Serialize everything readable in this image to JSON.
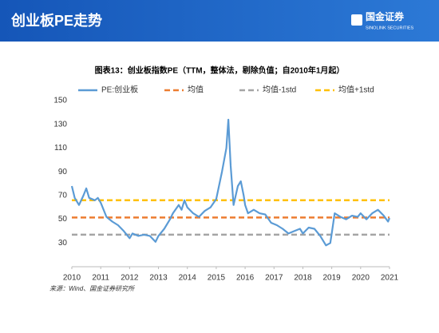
{
  "header": {
    "title": "创业板PE走势",
    "logo": "国金证券",
    "logo_en": "SINOLINK SECURITIES"
  },
  "chart_data": {
    "type": "line",
    "title": "图表13：创业板指数PE（TTM，整体法，剔除负值；自2010年1月起）",
    "source": "来源：Wind、国金证券研究所",
    "xlim": [
      2010,
      2021
    ],
    "xticks": [
      2010,
      2011,
      2012,
      2013,
      2014,
      2015,
      2016,
      2017,
      2018,
      2019,
      2020,
      2021
    ],
    "ylim": [
      10,
      150
    ],
    "yticks": [
      30,
      50,
      70,
      90,
      110,
      130,
      150
    ],
    "series": [
      {
        "name": "PE:创业板",
        "color": "#5b9bd5",
        "x": [
          2010.0,
          2010.1,
          2010.25,
          2010.4,
          2010.5,
          2010.6,
          2010.8,
          2010.9,
          2011.0,
          2011.2,
          2011.4,
          2011.6,
          2011.8,
          2012.0,
          2012.1,
          2012.3,
          2012.5,
          2012.7,
          2012.9,
          2013.0,
          2013.2,
          2013.4,
          2013.5,
          2013.7,
          2013.8,
          2013.9,
          2014.0,
          2014.2,
          2014.4,
          2014.6,
          2014.8,
          2015.0,
          2015.2,
          2015.35,
          2015.42,
          2015.5,
          2015.6,
          2015.75,
          2015.85,
          2015.95,
          2016.0,
          2016.1,
          2016.3,
          2016.5,
          2016.7,
          2016.9,
          2017.1,
          2017.3,
          2017.5,
          2017.7,
          2017.9,
          2018.0,
          2018.2,
          2018.4,
          2018.6,
          2018.8,
          2018.95,
          2019.0,
          2019.1,
          2019.3,
          2019.5,
          2019.7,
          2019.9,
          2020.0,
          2020.2,
          2020.4,
          2020.6,
          2020.8,
          2020.95,
          2021.0
        ],
        "values": [
          78,
          68,
          62,
          70,
          76,
          68,
          66,
          68,
          64,
          52,
          48,
          45,
          40,
          34,
          38,
          36,
          37,
          36,
          31,
          36,
          42,
          50,
          55,
          62,
          58,
          66,
          60,
          55,
          52,
          57,
          60,
          67,
          90,
          110,
          134,
          95,
          62,
          78,
          82,
          70,
          62,
          55,
          58,
          55,
          54,
          47,
          45,
          42,
          38,
          40,
          42,
          38,
          43,
          42,
          36,
          28,
          30,
          38,
          55,
          52,
          50,
          53,
          52,
          55,
          50,
          55,
          58,
          53,
          48,
          51
        ]
      }
    ],
    "hlines": [
      {
        "name": "均值",
        "color": "#ed7d31",
        "value": 51.5
      },
      {
        "name": "均值-1std",
        "color": "#a5a5a5",
        "value": 37
      },
      {
        "name": "均值+1std",
        "color": "#ffc000",
        "value": 66
      }
    ]
  }
}
